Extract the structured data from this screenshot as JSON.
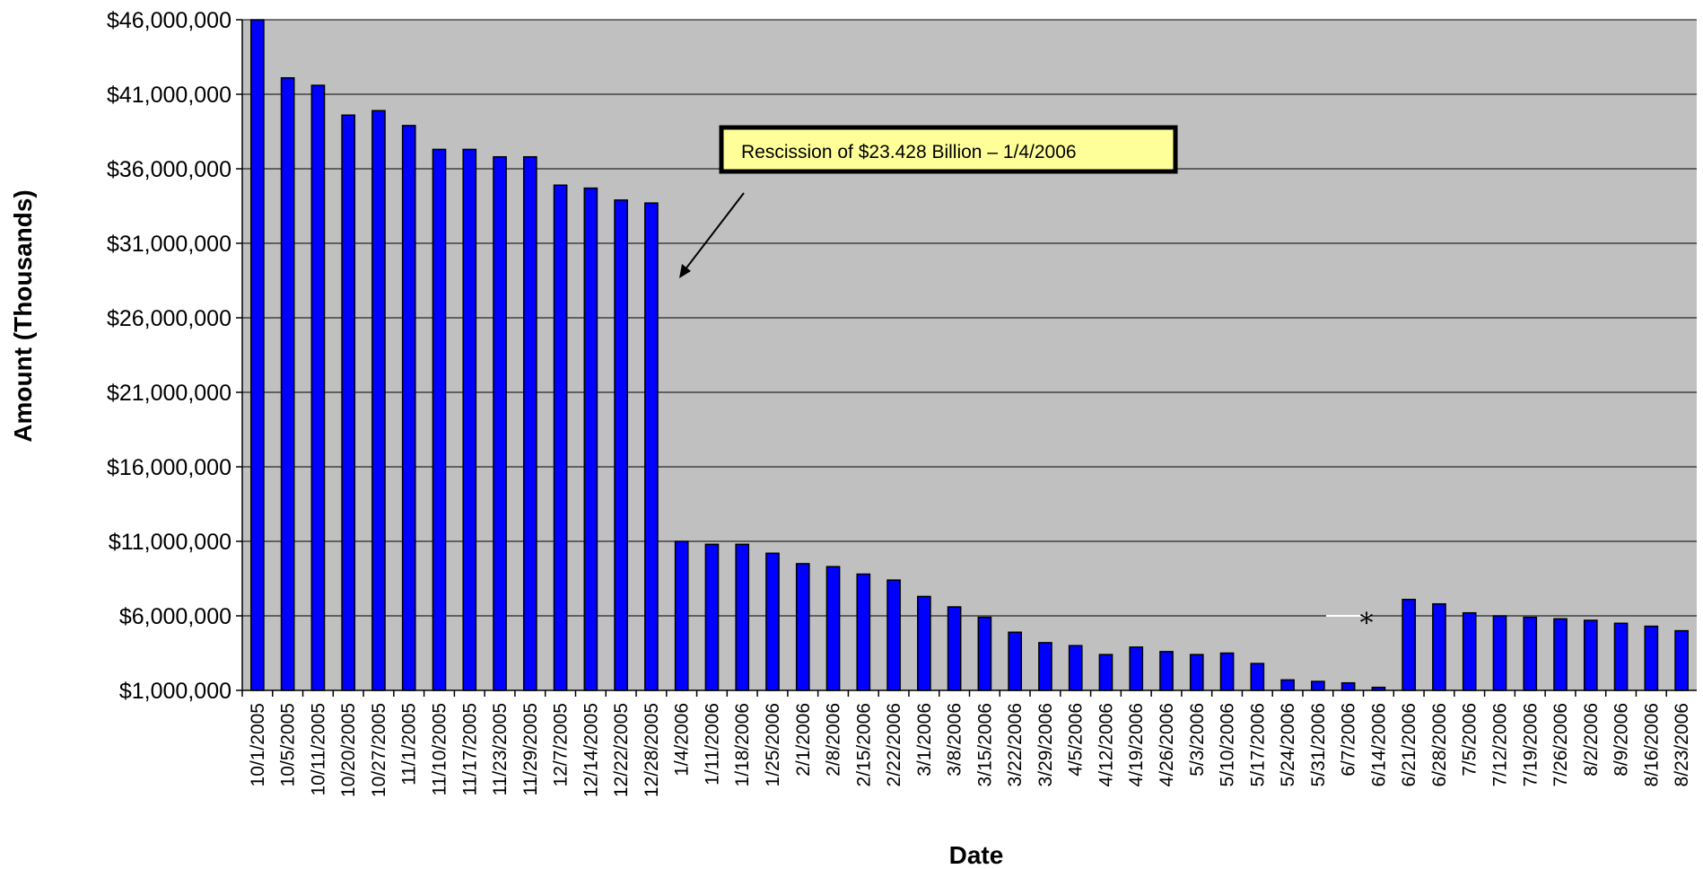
{
  "chart_data": {
    "type": "bar",
    "xlabel": "Date",
    "ylabel": "Amount (Thousands)",
    "ylim": [
      1000000,
      46000000
    ],
    "yticks": [
      "$1,000,000",
      "$6,000,000",
      "$11,000,000",
      "$16,000,000",
      "$21,000,000",
      "$26,000,000",
      "$31,000,000",
      "$36,000,000",
      "$41,000,000",
      "$46,000,000"
    ],
    "ytick_values": [
      1000000,
      6000000,
      11000000,
      16000000,
      21000000,
      26000000,
      31000000,
      36000000,
      41000000,
      46000000
    ],
    "grid": true,
    "plot_background": "#c0c0c0",
    "bar_color": "#0000ff",
    "categories": [
      "10/1/2005",
      "10/5/2005",
      "10/11/2005",
      "10/20/2005",
      "10/27/2005",
      "11/1/2005",
      "11/10/2005",
      "11/17/2005",
      "11/23/2005",
      "11/29/2005",
      "12/7/2005",
      "12/14/2005",
      "12/22/2005",
      "12/28/2005",
      "1/4/2006",
      "1/11/2006",
      "1/18/2006",
      "1/25/2006",
      "2/1/2006",
      "2/8/2006",
      "2/15/2006",
      "2/22/2006",
      "3/1/2006",
      "3/8/2006",
      "3/15/2006",
      "3/22/2006",
      "3/29/2006",
      "4/5/2006",
      "4/12/2006",
      "4/19/2006",
      "4/26/2006",
      "5/3/2006",
      "5/10/2006",
      "5/17/2006",
      "5/24/2006",
      "5/31/2006",
      "6/7/2006",
      "6/14/2006",
      "6/21/2006",
      "6/28/2006",
      "7/5/2006",
      "7/12/2006",
      "7/19/2006",
      "7/26/2006",
      "8/2/2006",
      "8/9/2006",
      "8/16/2006",
      "8/23/2006"
    ],
    "values": [
      46000000,
      42100000,
      41600000,
      39600000,
      39900000,
      38900000,
      37300000,
      37300000,
      36800000,
      36800000,
      34900000,
      34700000,
      33900000,
      33700000,
      11000000,
      10800000,
      10800000,
      10200000,
      9500000,
      9300000,
      8800000,
      8400000,
      7300000,
      6600000,
      5900000,
      4900000,
      4200000,
      4000000,
      3400000,
      3900000,
      3600000,
      3400000,
      3500000,
      2800000,
      1700000,
      1600000,
      1500000,
      1200000,
      7100000,
      6800000,
      6200000,
      6000000,
      5900000,
      5800000,
      5700000,
      5500000,
      5300000,
      5000000
    ],
    "annotations": [
      {
        "text": "Rescission of $23.428 Billion – 1/4/2006",
        "box_fill": "#ffff99",
        "arrow_target_category": "1/4/2006"
      },
      {
        "text": "*",
        "near_category": "6/14/2006"
      }
    ]
  }
}
